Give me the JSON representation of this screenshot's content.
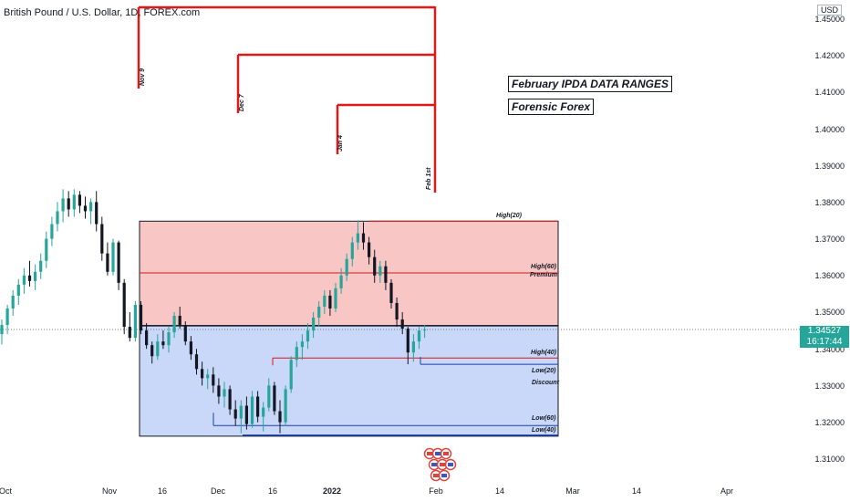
{
  "header": {
    "title": "British Pound / U.S. Dollar, 1D, FOREX.com",
    "currency": "USD"
  },
  "annotations": {
    "ipda_title": "February IPDA DATA RANGES",
    "author": "Forensic Forex",
    "markers": [
      "Nov 9",
      "Dec 7",
      "Jan 4",
      "Feb 1st"
    ],
    "levels": {
      "high20": "High(20)",
      "high60": "High(60)",
      "premium": "Premium",
      "high40": "High(40)",
      "low20": "Low(20)",
      "discount": "Discount",
      "low60": "Low(60)",
      "low40": "Low(40)"
    }
  },
  "price": {
    "last": "1.34527",
    "countdown": "16:17:44"
  },
  "chart_data": {
    "type": "candlestick",
    "symbol": "GBPUSD",
    "timeframe": "1D",
    "ylim": [
      1.305,
      1.455
    ],
    "y_ticks": [
      "1.45000",
      "1.42000",
      "1.41000",
      "1.40000",
      "1.39000",
      "1.38000",
      "1.37000",
      "1.36000",
      "1.35000",
      "1.34000",
      "1.33000",
      "1.32000",
      "1.31000"
    ],
    "x_ticks": [
      "Oct",
      "Nov",
      "16",
      "Dec",
      "16",
      "2022",
      "Feb",
      "14",
      "Mar",
      "14",
      "Apr"
    ],
    "x_ticks_bold": [
      "2022"
    ],
    "colors": {
      "up": "#26a69a",
      "down": "#131722",
      "premium": "#f9c6c6",
      "discount": "#c9d8f8",
      "marker": "#e01818"
    },
    "last_price": 1.34527,
    "levels": {
      "high20": 1.3748,
      "high60": 1.3607,
      "equilibrium": 1.3463,
      "high40": 1.3375,
      "low20": 1.3358,
      "low60": 1.3191,
      "low40": 1.3162
    },
    "candles": [
      {
        "o": 1.344,
        "h": 1.348,
        "l": 1.3412,
        "c": 1.3465
      },
      {
        "o": 1.3465,
        "h": 1.352,
        "l": 1.344,
        "c": 1.351
      },
      {
        "o": 1.351,
        "h": 1.356,
        "l": 1.349,
        "c": 1.3545
      },
      {
        "o": 1.3545,
        "h": 1.359,
        "l": 1.352,
        "c": 1.3575
      },
      {
        "o": 1.3575,
        "h": 1.362,
        "l": 1.355,
        "c": 1.36
      },
      {
        "o": 1.36,
        "h": 1.364,
        "l": 1.357,
        "c": 1.3585
      },
      {
        "o": 1.3585,
        "h": 1.363,
        "l": 1.356,
        "c": 1.361
      },
      {
        "o": 1.361,
        "h": 1.366,
        "l": 1.359,
        "c": 1.364
      },
      {
        "o": 1.364,
        "h": 1.372,
        "l": 1.362,
        "c": 1.37
      },
      {
        "o": 1.37,
        "h": 1.376,
        "l": 1.368,
        "c": 1.374
      },
      {
        "o": 1.374,
        "h": 1.38,
        "l": 1.372,
        "c": 1.3775
      },
      {
        "o": 1.3775,
        "h": 1.3835,
        "l": 1.3745,
        "c": 1.381
      },
      {
        "o": 1.381,
        "h": 1.383,
        "l": 1.376,
        "c": 1.378
      },
      {
        "o": 1.378,
        "h": 1.3835,
        "l": 1.376,
        "c": 1.382
      },
      {
        "o": 1.382,
        "h": 1.383,
        "l": 1.377,
        "c": 1.379
      },
      {
        "o": 1.379,
        "h": 1.3815,
        "l": 1.3755,
        "c": 1.3775
      },
      {
        "o": 1.3775,
        "h": 1.381,
        "l": 1.374,
        "c": 1.38
      },
      {
        "o": 1.38,
        "h": 1.383,
        "l": 1.372,
        "c": 1.374
      },
      {
        "o": 1.374,
        "h": 1.376,
        "l": 1.364,
        "c": 1.366
      },
      {
        "o": 1.366,
        "h": 1.369,
        "l": 1.36,
        "c": 1.361
      },
      {
        "o": 1.361,
        "h": 1.37,
        "l": 1.36,
        "c": 1.369
      },
      {
        "o": 1.369,
        "h": 1.3695,
        "l": 1.356,
        "c": 1.358
      },
      {
        "o": 1.358,
        "h": 1.359,
        "l": 1.344,
        "c": 1.346
      },
      {
        "o": 1.346,
        "h": 1.35,
        "l": 1.342,
        "c": 1.343
      },
      {
        "o": 1.343,
        "h": 1.353,
        "l": 1.342,
        "c": 1.352
      },
      {
        "o": 1.352,
        "h": 1.353,
        "l": 1.344,
        "c": 1.345
      },
      {
        "o": 1.345,
        "h": 1.347,
        "l": 1.34,
        "c": 1.341
      },
      {
        "o": 1.341,
        "h": 1.342,
        "l": 1.336,
        "c": 1.338
      },
      {
        "o": 1.338,
        "h": 1.344,
        "l": 1.337,
        "c": 1.342
      },
      {
        "o": 1.342,
        "h": 1.345,
        "l": 1.34,
        "c": 1.341
      },
      {
        "o": 1.341,
        "h": 1.346,
        "l": 1.339,
        "c": 1.3445
      },
      {
        "o": 1.3445,
        "h": 1.35,
        "l": 1.343,
        "c": 1.349
      },
      {
        "o": 1.349,
        "h": 1.3515,
        "l": 1.3455,
        "c": 1.3465
      },
      {
        "o": 1.3465,
        "h": 1.3475,
        "l": 1.341,
        "c": 1.342
      },
      {
        "o": 1.342,
        "h": 1.3435,
        "l": 1.337,
        "c": 1.3385
      },
      {
        "o": 1.3385,
        "h": 1.34,
        "l": 1.333,
        "c": 1.3345
      },
      {
        "o": 1.3345,
        "h": 1.3365,
        "l": 1.33,
        "c": 1.332
      },
      {
        "o": 1.332,
        "h": 1.3345,
        "l": 1.329,
        "c": 1.333
      },
      {
        "o": 1.333,
        "h": 1.335,
        "l": 1.328,
        "c": 1.33
      },
      {
        "o": 1.33,
        "h": 1.332,
        "l": 1.325,
        "c": 1.327
      },
      {
        "o": 1.327,
        "h": 1.331,
        "l": 1.324,
        "c": 1.329
      },
      {
        "o": 1.329,
        "h": 1.33,
        "l": 1.322,
        "c": 1.3235
      },
      {
        "o": 1.3235,
        "h": 1.326,
        "l": 1.319,
        "c": 1.321
      },
      {
        "o": 1.321,
        "h": 1.326,
        "l": 1.317,
        "c": 1.3245
      },
      {
        "o": 1.3245,
        "h": 1.327,
        "l": 1.318,
        "c": 1.3195
      },
      {
        "o": 1.3195,
        "h": 1.3285,
        "l": 1.3185,
        "c": 1.327
      },
      {
        "o": 1.327,
        "h": 1.3285,
        "l": 1.32,
        "c": 1.3215
      },
      {
        "o": 1.3215,
        "h": 1.3255,
        "l": 1.3175,
        "c": 1.324
      },
      {
        "o": 1.324,
        "h": 1.332,
        "l": 1.323,
        "c": 1.33
      },
      {
        "o": 1.33,
        "h": 1.331,
        "l": 1.322,
        "c": 1.323
      },
      {
        "o": 1.323,
        "h": 1.326,
        "l": 1.317,
        "c": 1.32
      },
      {
        "o": 1.32,
        "h": 1.33,
        "l": 1.319,
        "c": 1.329
      },
      {
        "o": 1.329,
        "h": 1.338,
        "l": 1.328,
        "c": 1.337
      },
      {
        "o": 1.337,
        "h": 1.342,
        "l": 1.335,
        "c": 1.3405
      },
      {
        "o": 1.3405,
        "h": 1.344,
        "l": 1.337,
        "c": 1.342
      },
      {
        "o": 1.342,
        "h": 1.347,
        "l": 1.34,
        "c": 1.345
      },
      {
        "o": 1.345,
        "h": 1.35,
        "l": 1.343,
        "c": 1.3485
      },
      {
        "o": 1.3485,
        "h": 1.353,
        "l": 1.346,
        "c": 1.3515
      },
      {
        "o": 1.3515,
        "h": 1.356,
        "l": 1.3495,
        "c": 1.3545
      },
      {
        "o": 1.3545,
        "h": 1.356,
        "l": 1.349,
        "c": 1.351
      },
      {
        "o": 1.351,
        "h": 1.358,
        "l": 1.35,
        "c": 1.3565
      },
      {
        "o": 1.3565,
        "h": 1.362,
        "l": 1.355,
        "c": 1.36
      },
      {
        "o": 1.36,
        "h": 1.366,
        "l": 1.3585,
        "c": 1.3645
      },
      {
        "o": 1.3645,
        "h": 1.3705,
        "l": 1.3625,
        "c": 1.369
      },
      {
        "o": 1.369,
        "h": 1.375,
        "l": 1.367,
        "c": 1.3715
      },
      {
        "o": 1.3715,
        "h": 1.3745,
        "l": 1.367,
        "c": 1.369
      },
      {
        "o": 1.369,
        "h": 1.3705,
        "l": 1.363,
        "c": 1.365
      },
      {
        "o": 1.365,
        "h": 1.367,
        "l": 1.358,
        "c": 1.36
      },
      {
        "o": 1.36,
        "h": 1.364,
        "l": 1.358,
        "c": 1.3625
      },
      {
        "o": 1.3625,
        "h": 1.364,
        "l": 1.356,
        "c": 1.358
      },
      {
        "o": 1.358,
        "h": 1.359,
        "l": 1.351,
        "c": 1.3525
      },
      {
        "o": 1.3525,
        "h": 1.354,
        "l": 1.346,
        "c": 1.348
      },
      {
        "o": 1.348,
        "h": 1.35,
        "l": 1.344,
        "c": 1.3455
      },
      {
        "o": 1.3455,
        "h": 1.346,
        "l": 1.3358,
        "c": 1.339
      },
      {
        "o": 1.339,
        "h": 1.344,
        "l": 1.3365,
        "c": 1.342
      },
      {
        "o": 1.342,
        "h": 1.346,
        "l": 1.34,
        "c": 1.345
      },
      {
        "o": 1.345,
        "h": 1.3465,
        "l": 1.343,
        "c": 1.3453
      }
    ]
  }
}
